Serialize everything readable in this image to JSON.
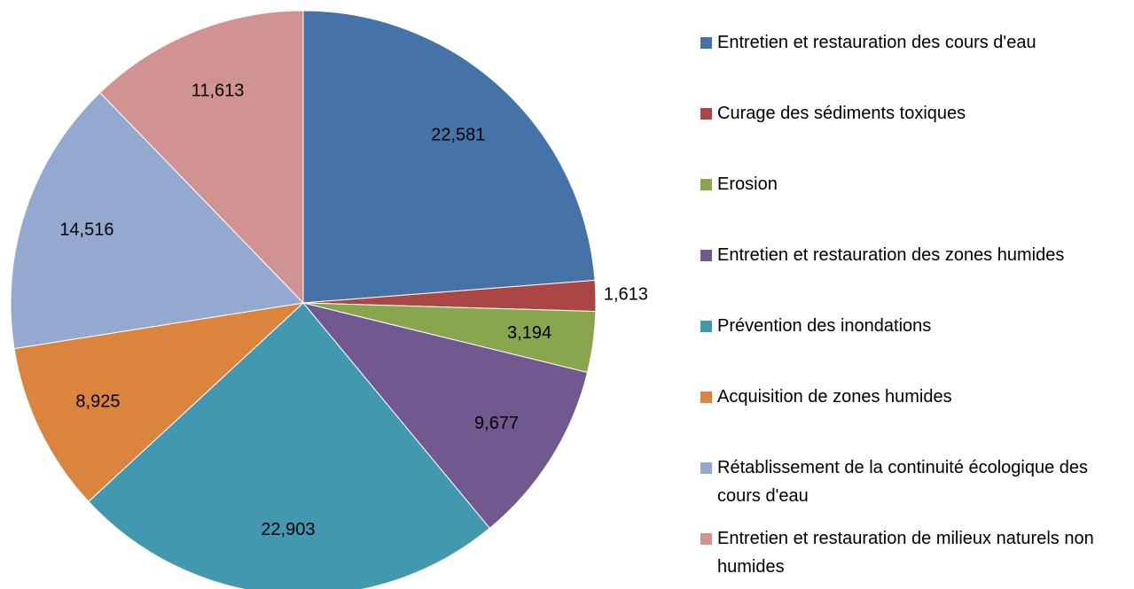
{
  "chart_data": {
    "type": "pie",
    "categories": [
      "Entretien et restauration des cours d'eau",
      "Curage des sédiments toxiques",
      "Erosion",
      "Entretien et restauration des zones humides",
      "Prévention des inondations",
      "Acquisition de zones humides",
      "Rétablissement de la continuité écologique des cours d'eau",
      "Entretien et restauration de milieux naturels non humides"
    ],
    "values": [
      22581,
      1613,
      3194,
      9677,
      22903,
      8925,
      14516,
      11613
    ],
    "value_labels": [
      "22,581",
      "1,613",
      "3,194",
      "9,677",
      "22,903",
      "8,925",
      "14,516",
      "11,613"
    ],
    "colors": [
      "#4572a7",
      "#aa4643",
      "#89a54e",
      "#71588f",
      "#4198af",
      "#db843d",
      "#93a9cf",
      "#d19392"
    ],
    "legend": "right"
  }
}
